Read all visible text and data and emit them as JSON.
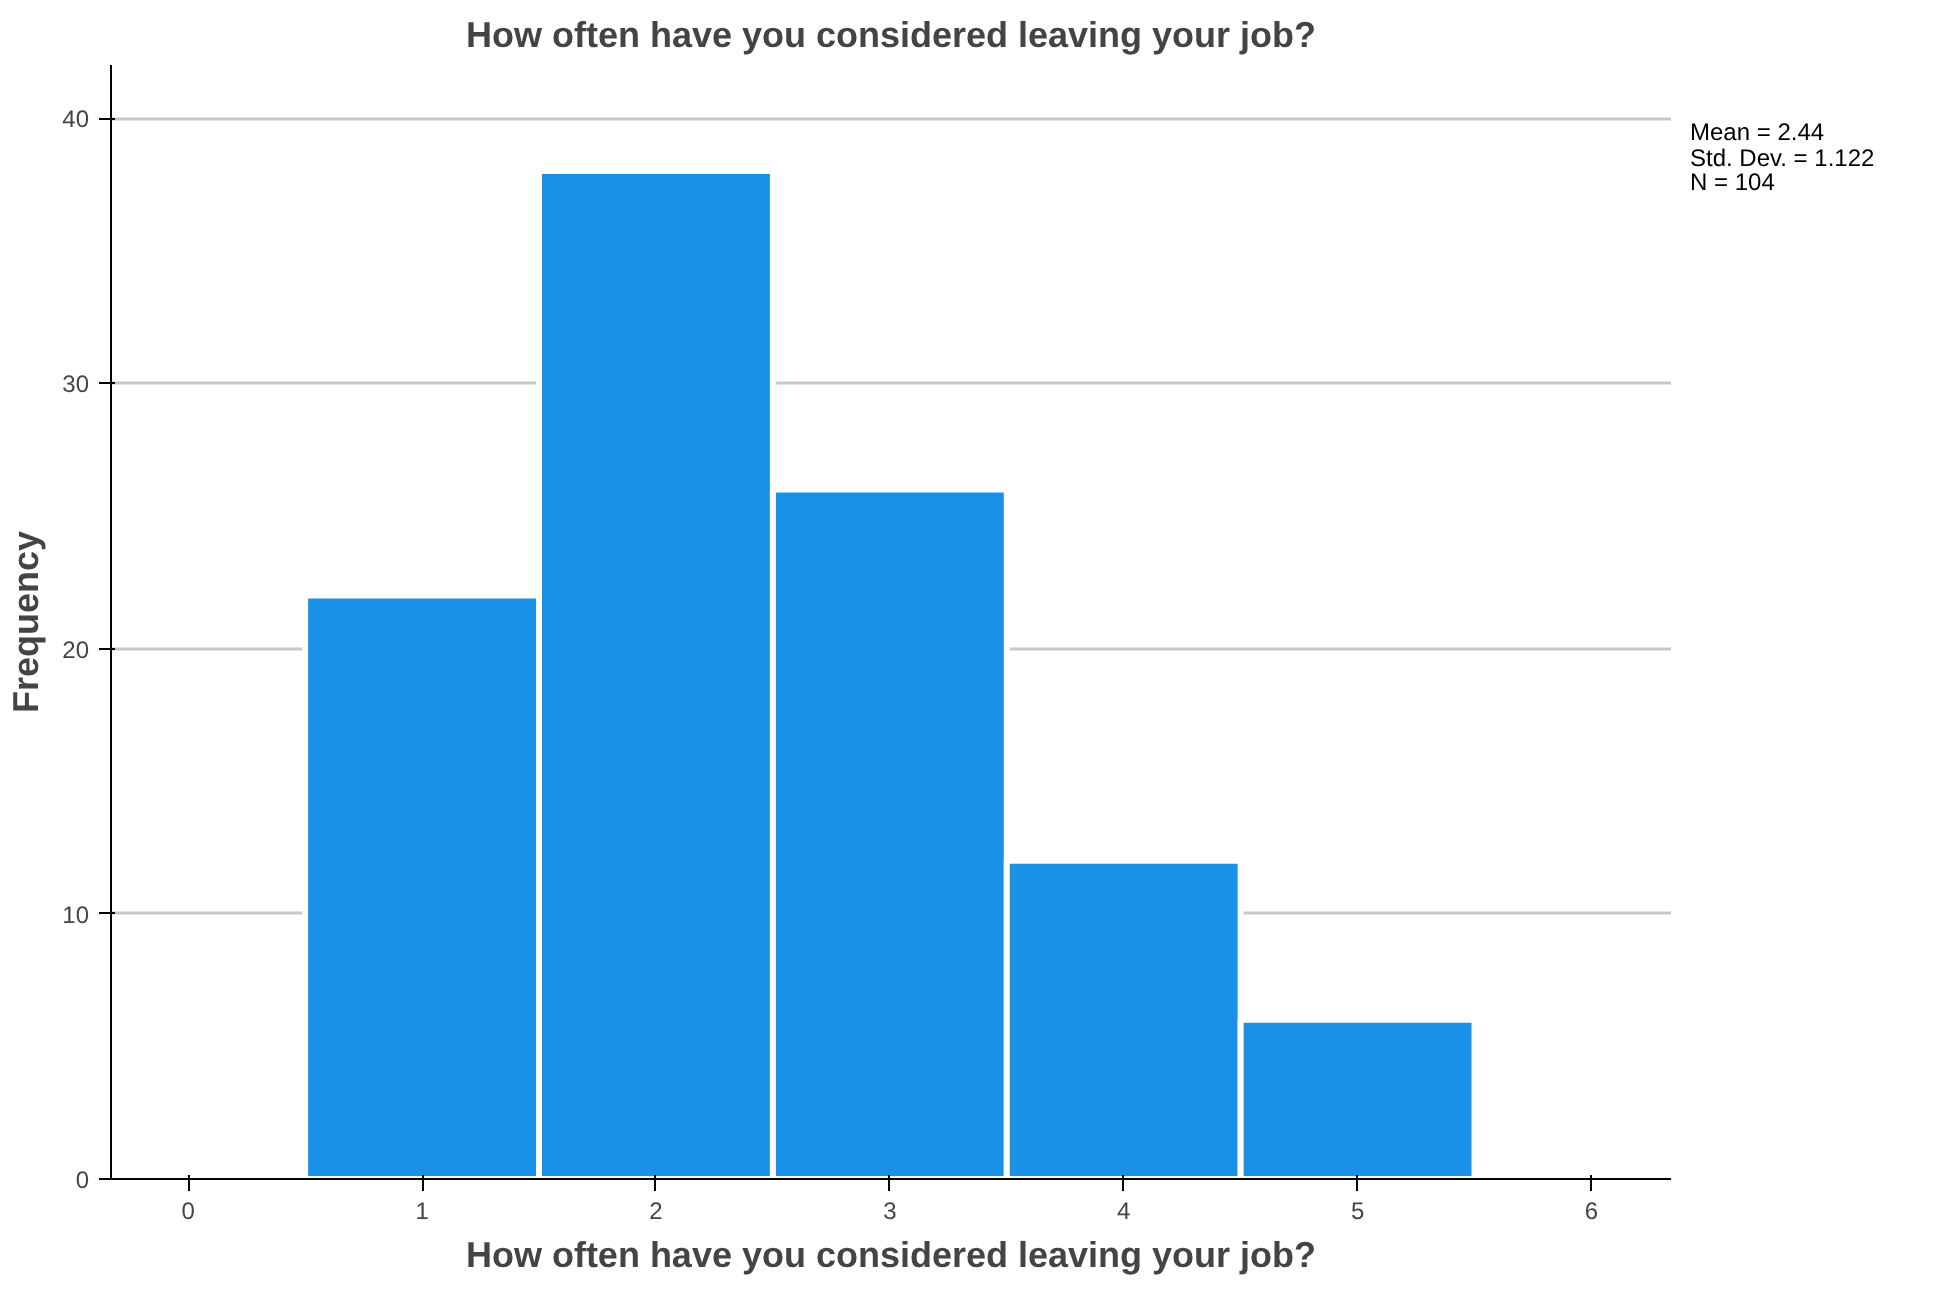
{
  "chart_data": {
    "type": "histogram",
    "title": "How often have you considered leaving your job?",
    "xlabel": "How often have you considered leaving your job?",
    "ylabel": "Frequency",
    "bins": [
      0.5,
      1.5,
      2.5,
      3.5,
      4.5,
      5.5
    ],
    "values": [
      22,
      38,
      26,
      12,
      6
    ],
    "color": "#1991e6",
    "xlim": [
      -0.33,
      6.34
    ],
    "xticks": [
      0,
      1,
      2,
      3,
      4,
      5,
      6
    ],
    "ylim": [
      0,
      42
    ],
    "yticks": [
      0,
      10,
      20,
      30,
      40
    ],
    "grid": "y",
    "annotations": [
      "Mean = 2.44",
      "Std. Dev. = 1.122",
      "N = 104"
    ]
  }
}
